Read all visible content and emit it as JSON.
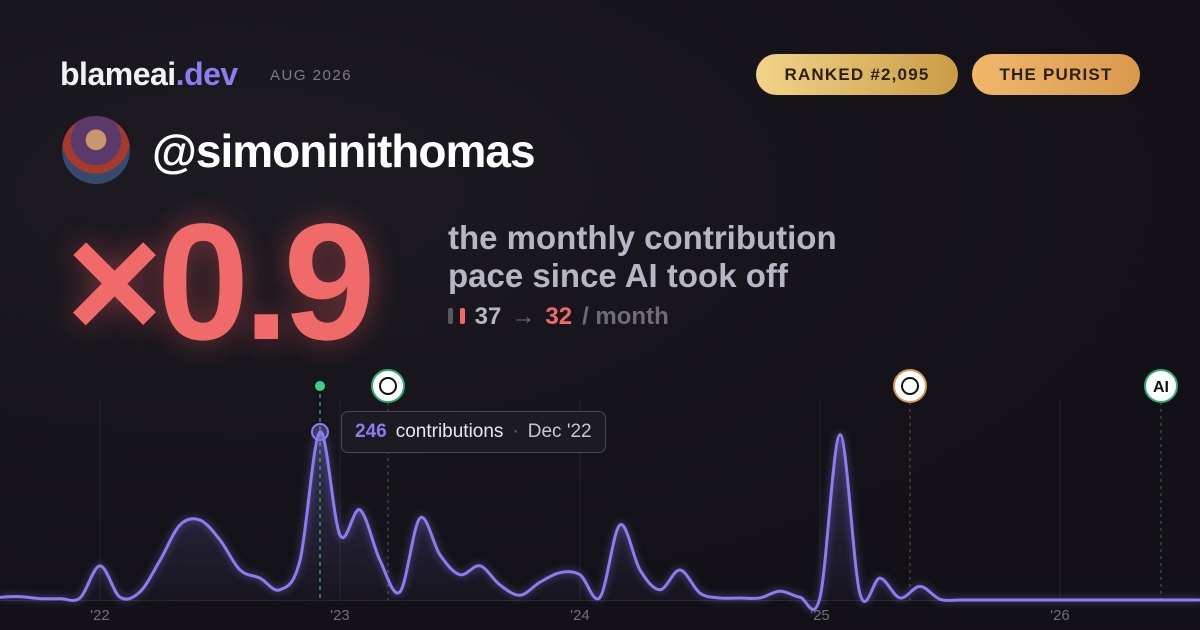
{
  "header": {
    "brand": "blameai",
    "brand_tld": ".dev",
    "date": "AUG 2026",
    "badges": [
      "RANKED #2,095",
      "THE PURIST"
    ]
  },
  "profile": {
    "handle": "@simoninithomas"
  },
  "headline": {
    "multiplier": "×0.9",
    "description": [
      "the monthly contribution",
      "pace since AI took off"
    ],
    "before": "37",
    "arrow": "→",
    "after": "32",
    "unit": "/ month"
  },
  "markers": [
    "AI"
  ],
  "chart_data": {
    "type": "line",
    "categories": [
      null,
      null,
      null,
      null,
      null,
      "'22",
      null,
      null,
      null,
      null,
      null,
      null,
      null,
      null,
      null,
      null,
      null,
      "'23",
      null,
      null,
      null,
      null,
      null,
      null,
      null,
      null,
      null,
      null,
      null,
      "'24",
      null,
      null,
      null,
      null,
      null,
      null,
      null,
      null,
      null,
      null,
      null,
      "'25",
      null,
      null,
      null,
      null,
      null,
      null,
      null,
      null,
      null,
      null,
      null,
      "'26",
      null,
      null,
      null,
      null,
      null,
      null,
      null
    ],
    "series": [
      {
        "name": "contributions",
        "color": "#8b7cf0",
        "values": [
          4,
          5,
          2,
          2,
          3,
          50,
          4,
          12,
          58,
          110,
          117,
          88,
          44,
          32,
          15,
          58,
          246,
          95,
          132,
          58,
          12,
          120,
          66,
          37,
          50,
          22,
          7,
          26,
          40,
          37,
          4,
          110,
          44,
          15,
          44,
          10,
          3,
          3,
          3,
          13,
          4,
          4,
          242,
          9,
          32,
          3,
          20,
          1,
          0,
          0,
          0,
          0,
          0,
          0,
          0,
          0,
          0,
          0,
          0,
          0,
          0
        ]
      }
    ],
    "tooltip": {
      "separator": "·",
      "date": "Dec '22"
    }
  }
}
